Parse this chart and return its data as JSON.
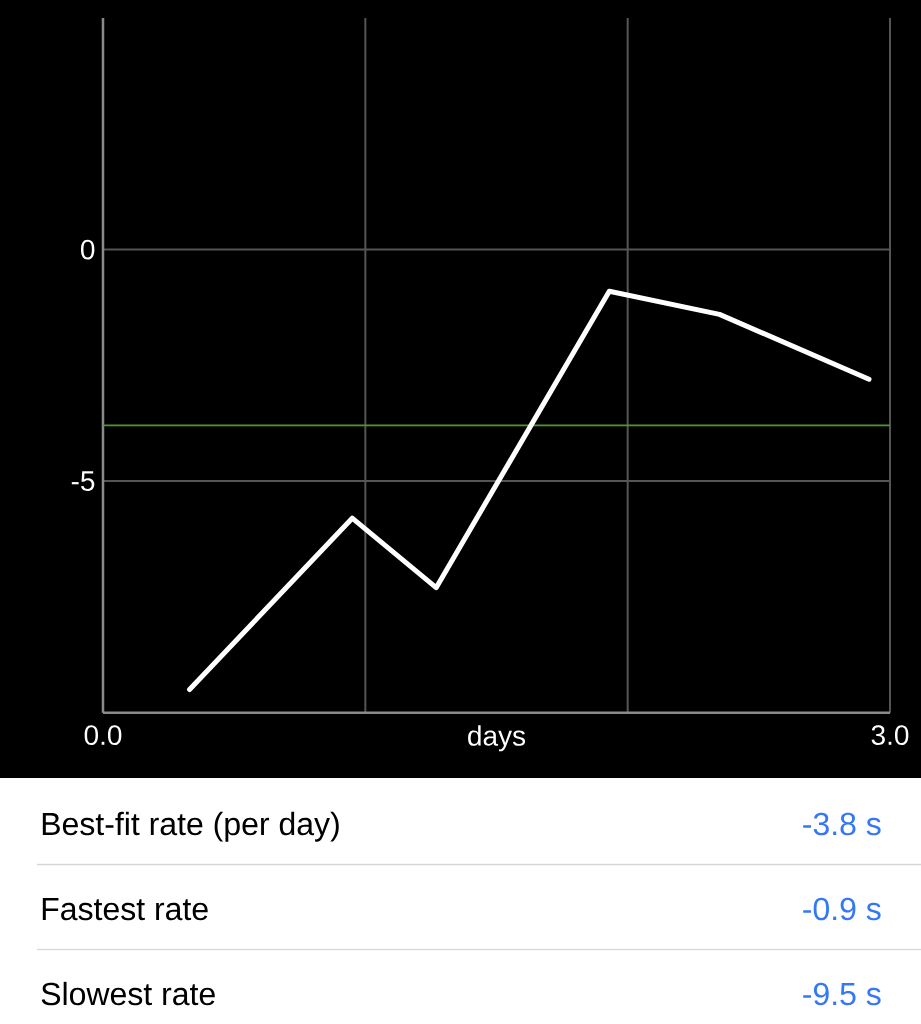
{
  "chart_data": {
    "type": "line",
    "x": [
      0.33,
      0.95,
      1.27,
      1.93,
      2.35,
      2.92
    ],
    "values": [
      -9.5,
      -5.8,
      -7.3,
      -0.9,
      -1.4,
      -2.8
    ],
    "color": "#ffffff",
    "xlabel": "days",
    "xlim": [
      0,
      3
    ],
    "ylim": [
      -10,
      5
    ],
    "xticks": [
      {
        "value": 0,
        "label": "0.0"
      },
      {
        "value": 1,
        "label": null
      },
      {
        "value": 2,
        "label": null
      },
      {
        "value": 3,
        "label": "3.0"
      }
    ],
    "yticks": [
      0,
      -5
    ],
    "grid": true,
    "ref_lines": [
      {
        "axis": "y",
        "value": -3.8,
        "color": "#4c9a2a"
      }
    ],
    "annotations": [
      "Best-fit rate (per day)",
      "-3.8 s",
      "Fastest rate",
      "-0.9 s",
      "Slowest rate",
      "-9.5 s"
    ]
  }
}
